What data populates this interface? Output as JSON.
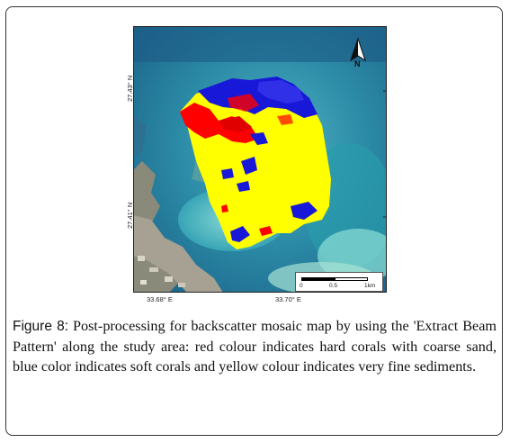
{
  "map": {
    "lat_labels": [
      "27.43° N",
      "27.41° N"
    ],
    "lon_labels": [
      "33.68° E",
      "33.70° E"
    ],
    "north_label": "N",
    "scale": {
      "ticks": [
        "0",
        "0.5",
        "1km"
      ]
    },
    "legend_colors": {
      "hard_corals": "#ff0000",
      "soft_corals": "#1010e0",
      "fine_sediments": "#ffff00"
    }
  },
  "caption": {
    "label": "Figure 8:",
    "text": " Post-processing for backscatter mosaic map by using the 'Extract Beam Pattern' along the study area: red colour indicates hard corals with coarse sand, blue color indicates soft corals and yellow colour indicates very fine sediments."
  }
}
